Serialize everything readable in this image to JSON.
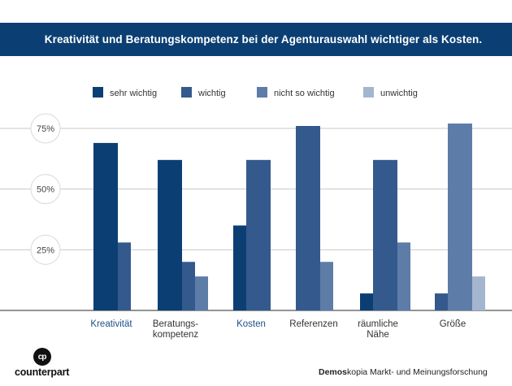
{
  "header": {
    "title": "Kreativität und Beratungskompetenz bei der Agenturauswahl wichtiger als Kosten."
  },
  "footer": {
    "logo_text": "counterpart",
    "logo_mark": "cp",
    "source_bold": "Demos",
    "source_rest": "kopia Markt- und Meinungsforschung"
  },
  "colors": {
    "title_bg": "#0b3f73",
    "series": [
      "#0b3f73",
      "#34598d",
      "#5d7ca8",
      "#a4b5cf"
    ]
  },
  "chart_data": {
    "type": "bar",
    "title": "Kreativität und Beratungskompetenz bei der Agenturauswahl wichtiger als Kosten.",
    "xlabel": "",
    "ylabel": "",
    "ylim": [
      0,
      100
    ],
    "ytick_labels": [
      "25%",
      "50%",
      "75%"
    ],
    "yticks": [
      25,
      50,
      75
    ],
    "grid": true,
    "legend_position": "top",
    "categories": [
      [
        "Kreativität"
      ],
      [
        "Beratungs-",
        "kompetenz"
      ],
      [
        "Kosten"
      ],
      [
        "Referenzen"
      ],
      [
        "räumliche",
        "Nähe"
      ],
      [
        "Größe"
      ]
    ],
    "series": [
      {
        "name": "sehr wichtig",
        "values": [
          69,
          62,
          35,
          0,
          7,
          0
        ]
      },
      {
        "name": "wichtig",
        "values": [
          28,
          20,
          62,
          76,
          62,
          7
        ]
      },
      {
        "name": "nicht so wichtig",
        "values": [
          0,
          14,
          0,
          20,
          28,
          77
        ]
      },
      {
        "name": "unwichtig",
        "values": [
          0,
          0,
          0,
          0,
          0,
          14
        ]
      }
    ]
  }
}
